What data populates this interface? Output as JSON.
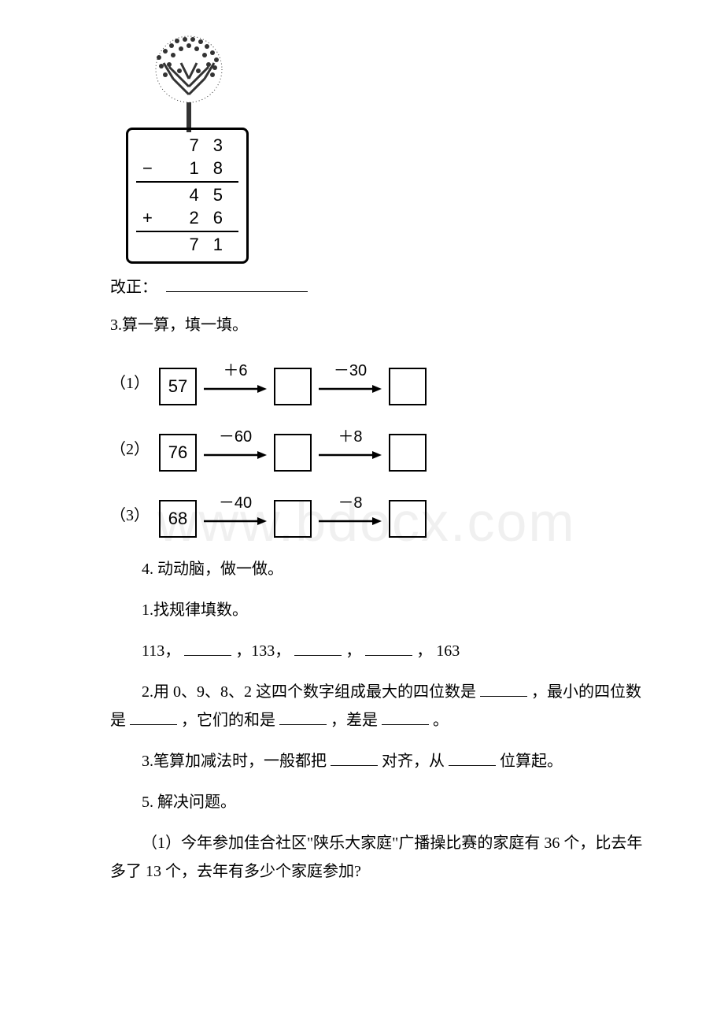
{
  "watermark": "www.bdocx.com",
  "column_calc": {
    "r1": {
      "sign": "",
      "d1": "7",
      "d2": "3"
    },
    "r2": {
      "sign": "−",
      "d1": "1",
      "d2": "8"
    },
    "r3": {
      "sign": "",
      "d1": "4",
      "d2": "5"
    },
    "r4": {
      "sign": "+",
      "d1": "2",
      "d2": "6"
    },
    "r5": {
      "sign": "",
      "d1": "7",
      "d2": "1"
    }
  },
  "correction_label": "改正：",
  "q3_title": "3.算一算，填一填。",
  "flows": [
    {
      "label": "（1）",
      "start": "57",
      "ops": [
        "＋6",
        "－30"
      ]
    },
    {
      "label": "（2）",
      "start": "76",
      "ops": [
        "－60",
        "＋8"
      ]
    },
    {
      "label": "（3）",
      "start": "68",
      "ops": [
        "－40",
        "－8"
      ]
    }
  ],
  "q4_title": "4. 动动脑，做一做。",
  "q4_sub1": "1.找规律填数。",
  "q4_seq_text": "113，　　　　，133，　　　　，　　　　， 163",
  "q4_seq": {
    "a": "113，",
    "c": "，133，",
    "e": "，",
    "g": "， 163"
  },
  "q4_sub2": {
    "pre": "2.用 0、9、8、2 这四个数字组成最大的四位数是",
    "mid1": "，最小的四位数是",
    "mid2": "，它们的和是",
    "mid3": "，差是",
    "end": "。"
  },
  "q4_sub3": {
    "pre": "3.笔算加减法时，一般都把",
    "mid1": "对齐，从",
    "mid2": "位算起。"
  },
  "q5_title": "5. 解决问题。",
  "q5_sub1": "（1）今年参加佳合社区\"陕乐大家庭\"广播操比赛的家庭有 36 个，比去年多了 13 个，去年有多少个家庭参加?"
}
